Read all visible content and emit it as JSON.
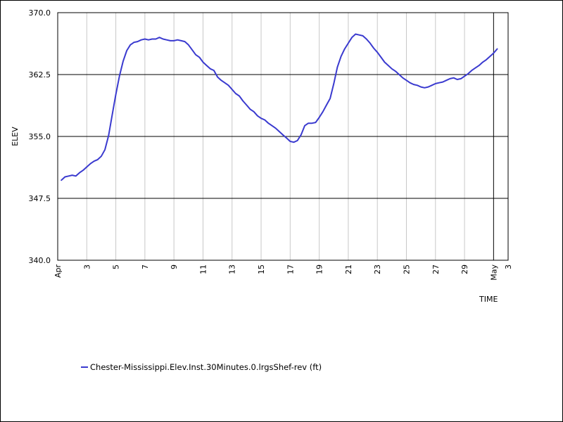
{
  "chart_data": {
    "type": "line",
    "xlabel": "TIME",
    "ylabel": "ELEV",
    "ylim": [
      340.0,
      370.0
    ],
    "xlim": [
      1,
      32
    ],
    "y_ticks": [
      "340.0",
      "347.5",
      "355.0",
      "362.5",
      "370.0"
    ],
    "y_tick_values": [
      340.0,
      347.5,
      355.0,
      362.5,
      370.0
    ],
    "x_ticks": [
      {
        "day": 1,
        "label": "Apr"
      },
      {
        "day": 3,
        "label": "3"
      },
      {
        "day": 5,
        "label": "5"
      },
      {
        "day": 7,
        "label": "7"
      },
      {
        "day": 9,
        "label": "9"
      },
      {
        "day": 11,
        "label": "11"
      },
      {
        "day": 13,
        "label": "13"
      },
      {
        "day": 15,
        "label": "15"
      },
      {
        "day": 17,
        "label": "17"
      },
      {
        "day": 19,
        "label": "19"
      },
      {
        "day": 21,
        "label": "21"
      },
      {
        "day": 23,
        "label": "23"
      },
      {
        "day": 25,
        "label": "25"
      },
      {
        "day": 27,
        "label": "27"
      },
      {
        "day": 29,
        "label": "29"
      },
      {
        "day": 31,
        "label": "May"
      },
      {
        "day": 32,
        "label": "3"
      }
    ],
    "grid": {
      "vertical_minor": true,
      "horizontal_major": true,
      "month_boundary_day": 31
    },
    "legend_position": "bottom-left",
    "series": [
      {
        "name": "Chester-Mississippi.Elev.Inst.30Minutes.0.lrgsShef-rev (ft)",
        "color": "#3a3acf",
        "x": [
          1.25,
          1.5,
          1.75,
          2.0,
          2.25,
          2.5,
          2.75,
          3.0,
          3.25,
          3.5,
          3.75,
          4.0,
          4.25,
          4.5,
          4.75,
          5.0,
          5.25,
          5.5,
          5.75,
          6.0,
          6.25,
          6.5,
          6.75,
          7.0,
          7.25,
          7.5,
          7.75,
          8.0,
          8.25,
          8.5,
          8.75,
          9.0,
          9.25,
          9.5,
          9.75,
          10.0,
          10.25,
          10.5,
          10.75,
          11.0,
          11.25,
          11.5,
          11.75,
          12.0,
          12.25,
          12.5,
          12.75,
          13.0,
          13.25,
          13.5,
          13.75,
          14.0,
          14.25,
          14.5,
          14.75,
          15.0,
          15.25,
          15.5,
          15.75,
          16.0,
          16.25,
          16.5,
          16.75,
          17.0,
          17.25,
          17.5,
          17.75,
          18.0,
          18.25,
          18.5,
          18.75,
          19.0,
          19.25,
          19.5,
          19.75,
          20.0,
          20.25,
          20.5,
          20.75,
          21.0,
          21.25,
          21.5,
          21.75,
          22.0,
          22.25,
          22.5,
          22.75,
          23.0,
          23.25,
          23.5,
          23.75,
          24.0,
          24.25,
          24.5,
          24.75,
          25.0,
          25.25,
          25.5,
          25.75,
          26.0,
          26.25,
          26.5,
          26.75,
          27.0,
          27.25,
          27.5,
          27.75,
          28.0,
          28.25,
          28.5,
          28.75,
          29.0,
          29.25,
          29.5,
          29.75,
          30.0,
          30.25,
          30.5,
          30.75,
          31.0,
          31.25
        ],
        "values": [
          349.7,
          350.1,
          350.2,
          350.3,
          350.2,
          350.6,
          350.9,
          351.3,
          351.7,
          352.0,
          352.2,
          352.6,
          353.4,
          355.1,
          357.6,
          360.1,
          362.3,
          364.1,
          365.4,
          366.1,
          366.4,
          366.5,
          366.7,
          366.8,
          366.7,
          366.8,
          366.8,
          367.0,
          366.8,
          366.7,
          366.6,
          366.6,
          366.7,
          366.6,
          366.5,
          366.1,
          365.5,
          364.9,
          364.6,
          364.0,
          363.6,
          363.2,
          363.0,
          362.2,
          361.8,
          361.5,
          361.2,
          360.7,
          360.2,
          359.9,
          359.3,
          358.8,
          358.3,
          358.0,
          357.5,
          357.2,
          357.0,
          356.6,
          356.3,
          356.0,
          355.6,
          355.2,
          354.8,
          354.4,
          354.3,
          354.5,
          355.2,
          356.3,
          356.6,
          356.6,
          356.7,
          357.3,
          358.0,
          358.8,
          359.6,
          361.4,
          363.4,
          364.7,
          365.6,
          366.3,
          367.0,
          367.4,
          367.3,
          367.2,
          366.8,
          366.3,
          365.7,
          365.2,
          364.6,
          364.0,
          363.6,
          363.2,
          362.9,
          362.5,
          362.1,
          361.8,
          361.5,
          361.3,
          361.2,
          361.0,
          360.9,
          361.0,
          361.2,
          361.4,
          361.5,
          361.6,
          361.8,
          362.0,
          362.1,
          361.9,
          362.0,
          362.3,
          362.6,
          363.0,
          363.3,
          363.6,
          364.0,
          364.3,
          364.7,
          365.1,
          365.6
        ]
      }
    ]
  }
}
